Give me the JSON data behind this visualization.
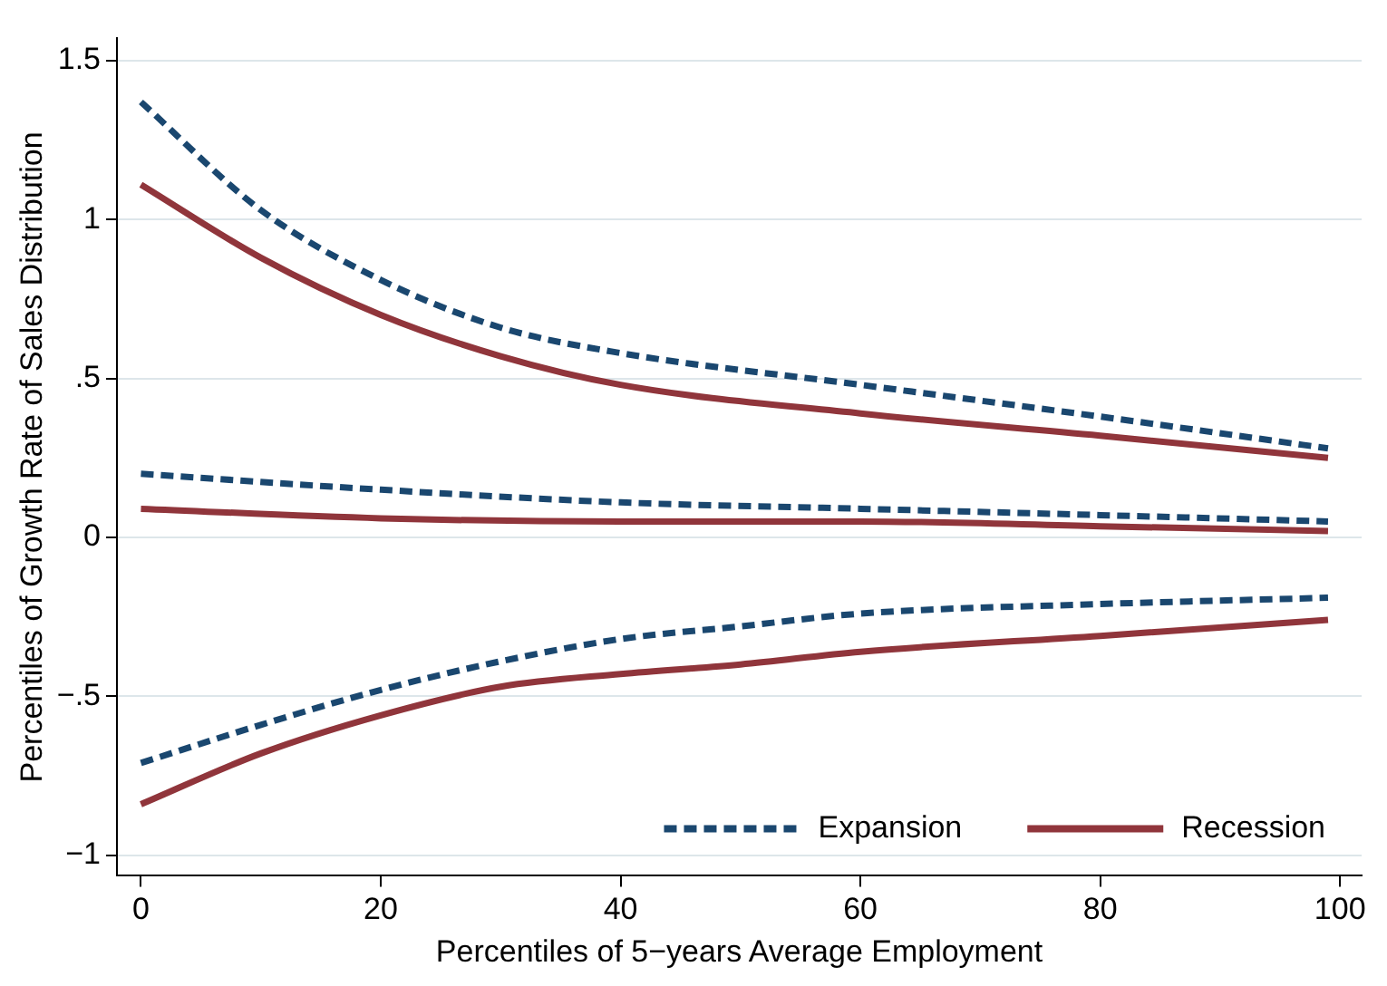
{
  "chart_data": {
    "type": "line",
    "xlabel": "Percentiles of 5−years Average Employment",
    "ylabel": "Percentiles of Growth Rate of Sales Distribution",
    "xlim": [
      -2,
      101.8
    ],
    "xticks": [
      0,
      20,
      40,
      60,
      80,
      100
    ],
    "ylim": [
      -1.065,
      1.57
    ],
    "yticks": [
      {
        "value": -1,
        "label": "−1"
      },
      {
        "value": -0.5,
        "label": "−.5"
      },
      0,
      {
        "value": 0.5,
        "label": ".5"
      },
      1,
      1.5
    ],
    "grid": "y",
    "legend": "bottom right",
    "marker": "none",
    "series": [
      {
        "name": "Expansion",
        "color": "#1a476f",
        "line_style": "dashed",
        "x": [
          0,
          10,
          20,
          30,
          40,
          60,
          80,
          99
        ],
        "values": [
          1.37,
          1.03,
          0.81,
          0.66,
          0.58,
          0.48,
          0.38,
          0.28
        ]
      },
      {
        "color": "#1a476f",
        "line_style": "dashed",
        "x": [
          0,
          20,
          40,
          60,
          80,
          99
        ],
        "values": [
          0.2,
          0.15,
          0.11,
          0.09,
          0.07,
          0.05
        ]
      },
      {
        "color": "#1a476f",
        "line_style": "dashed",
        "x": [
          0,
          10,
          20,
          30,
          40,
          50,
          60,
          80,
          99
        ],
        "values": [
          -0.71,
          -0.59,
          -0.48,
          -0.39,
          -0.32,
          -0.28,
          -0.24,
          -0.21,
          -0.19
        ]
      },
      {
        "name": "Recession",
        "color": "#90353b",
        "line_style": "solid",
        "x": [
          0,
          10,
          20,
          30,
          40,
          60,
          80,
          99
        ],
        "values": [
          1.11,
          0.88,
          0.7,
          0.57,
          0.48,
          0.39,
          0.32,
          0.25
        ]
      },
      {
        "color": "#90353b",
        "line_style": "solid",
        "x": [
          0,
          20,
          40,
          60,
          80,
          99
        ],
        "values": [
          0.09,
          0.06,
          0.05,
          0.05,
          0.035,
          0.02
        ]
      },
      {
        "color": "#90353b",
        "line_style": "solid",
        "x": [
          0,
          10,
          20,
          30,
          40,
          50,
          60,
          80,
          99
        ],
        "values": [
          -0.84,
          -0.68,
          -0.56,
          -0.47,
          -0.43,
          -0.4,
          -0.36,
          -0.31,
          -0.26
        ]
      }
    ]
  }
}
